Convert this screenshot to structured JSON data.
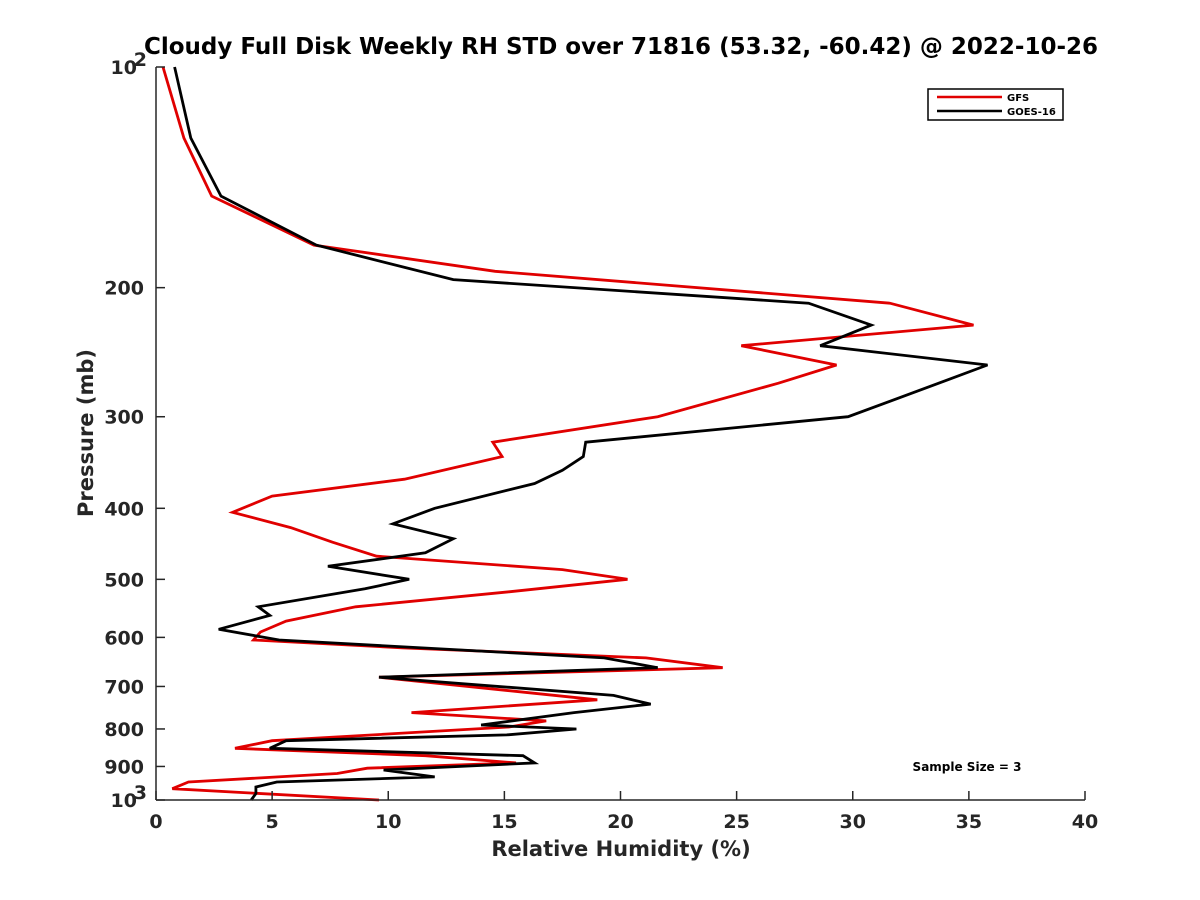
{
  "chart_data": {
    "type": "line",
    "title": "Cloudy Full Disk Weekly RH STD over 71816 (53.32, -60.42) @ 2022-10-26",
    "xlabel": "Relative Humidity (%)",
    "ylabel": "Pressure (mb)",
    "xlim": [
      0,
      40
    ],
    "ylim": [
      100,
      1000
    ],
    "yscale": "log",
    "y_reversed": true,
    "x_ticks": [
      "0",
      "5",
      "10",
      "15",
      "20",
      "25",
      "30",
      "35",
      "40"
    ],
    "y_ticks": [
      {
        "value": 100,
        "label": "10",
        "sup": "2"
      },
      {
        "value": 200,
        "label": "200"
      },
      {
        "value": 300,
        "label": "300"
      },
      {
        "value": 400,
        "label": "400"
      },
      {
        "value": 500,
        "label": "500"
      },
      {
        "value": 600,
        "label": "600"
      },
      {
        "value": 700,
        "label": "700"
      },
      {
        "value": 800,
        "label": "800"
      },
      {
        "value": 900,
        "label": "900"
      },
      {
        "value": 1000,
        "label": "10",
        "sup": "3"
      }
    ],
    "grid": false,
    "legend_position": "top-right",
    "annotation": "Sample Size = 3",
    "series": [
      {
        "name": "GFS",
        "color": "#e00000",
        "points": [
          [
            0.3,
            100
          ],
          [
            1.2,
            125
          ],
          [
            2.4,
            150
          ],
          [
            6.8,
            175
          ],
          [
            14.6,
            190
          ],
          [
            31.6,
            210
          ],
          [
            35.2,
            225
          ],
          [
            25.2,
            240
          ],
          [
            29.3,
            255
          ],
          [
            26.8,
            270
          ],
          [
            21.6,
            300
          ],
          [
            14.5,
            325
          ],
          [
            14.9,
            340
          ],
          [
            10.7,
            365
          ],
          [
            5,
            385
          ],
          [
            3.3,
            405
          ],
          [
            5.8,
            425
          ],
          [
            7.6,
            445
          ],
          [
            9.5,
            465
          ],
          [
            17.5,
            485
          ],
          [
            20.3,
            500
          ],
          [
            15.2,
            520
          ],
          [
            8.6,
            545
          ],
          [
            5.6,
            570
          ],
          [
            4.5,
            590
          ],
          [
            4.2,
            605
          ],
          [
            10.6,
            620
          ],
          [
            21.1,
            640
          ],
          [
            24.4,
            660
          ],
          [
            9.6,
            680
          ],
          [
            19,
            730
          ],
          [
            11,
            760
          ],
          [
            16.8,
            780
          ],
          [
            15.2,
            795
          ],
          [
            5,
            830
          ],
          [
            3.4,
            850
          ],
          [
            11.6,
            870
          ],
          [
            15.5,
            890
          ],
          [
            9.1,
            905
          ],
          [
            7.8,
            920
          ],
          [
            1.4,
            945
          ],
          [
            0.7,
            965
          ],
          [
            9.6,
            1000
          ]
        ]
      },
      {
        "name": "GOES-16",
        "color": "#000000",
        "points": [
          [
            0.8,
            100
          ],
          [
            1.5,
            125
          ],
          [
            2.8,
            150
          ],
          [
            6.9,
            175
          ],
          [
            12.8,
            195
          ],
          [
            28.1,
            210
          ],
          [
            30.8,
            225
          ],
          [
            28.6,
            240
          ],
          [
            35.8,
            255
          ],
          [
            33.7,
            270
          ],
          [
            29.8,
            300
          ],
          [
            18.5,
            325
          ],
          [
            18.4,
            340
          ],
          [
            17.5,
            355
          ],
          [
            16.3,
            370
          ],
          [
            12,
            400
          ],
          [
            10.2,
            420
          ],
          [
            12.8,
            440
          ],
          [
            11.6,
            460
          ],
          [
            7.4,
            480
          ],
          [
            10.9,
            500
          ],
          [
            9,
            515
          ],
          [
            4.4,
            545
          ],
          [
            4.9,
            560
          ],
          [
            2.7,
            585
          ],
          [
            5.3,
            605
          ],
          [
            19.3,
            640
          ],
          [
            21.6,
            660
          ],
          [
            9.6,
            680
          ],
          [
            19.7,
            720
          ],
          [
            21.3,
            740
          ],
          [
            18,
            760
          ],
          [
            14,
            790
          ],
          [
            18.1,
            800
          ],
          [
            15.1,
            815
          ],
          [
            5.6,
            830
          ],
          [
            4.9,
            850
          ],
          [
            15.8,
            870
          ],
          [
            16.3,
            890
          ],
          [
            9.8,
            910
          ],
          [
            12,
            930
          ],
          [
            5.2,
            945
          ],
          [
            4.3,
            960
          ],
          [
            4.3,
            980
          ],
          [
            4.1,
            1000
          ]
        ]
      }
    ]
  }
}
